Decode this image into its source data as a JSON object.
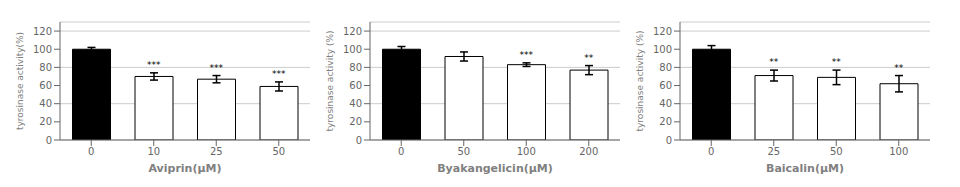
{
  "chart_data": [
    {
      "type": "bar",
      "xlabel": "Aviprin(μM)",
      "ylabel": "tyrosinase activity(%)",
      "categories": [
        "0",
        "10",
        "25",
        "50"
      ],
      "values": [
        100,
        70,
        67,
        59
      ],
      "errors": [
        2,
        4,
        4,
        5
      ],
      "colors": [
        "black",
        "white",
        "white",
        "white"
      ],
      "annotations": [
        null,
        "***",
        "***",
        "***"
      ],
      "ylim": [
        0,
        130
      ],
      "yticks": [
        0,
        20,
        40,
        60,
        80,
        100,
        120
      ],
      "grid": true
    },
    {
      "type": "bar",
      "xlabel": "Byakangelicin(μM)",
      "ylabel": "tyrosinase activity (%)",
      "categories": [
        "0",
        "50",
        "100",
        "200"
      ],
      "values": [
        100,
        92,
        83,
        77
      ],
      "errors": [
        3,
        5,
        2,
        5
      ],
      "colors": [
        "black",
        "white",
        "white",
        "white"
      ],
      "annotations": [
        null,
        null,
        "***",
        "**"
      ],
      "ylim": [
        0,
        130
      ],
      "yticks": [
        0,
        20,
        40,
        60,
        80,
        100,
        120
      ],
      "grid": true
    },
    {
      "type": "bar",
      "xlabel": "Baicalin(μM)",
      "ylabel": "tyrosinase activity (%)",
      "categories": [
        "0",
        "25",
        "50",
        "100"
      ],
      "values": [
        100,
        71,
        69,
        62
      ],
      "errors": [
        4,
        6,
        8,
        9
      ],
      "colors": [
        "black",
        "white",
        "white",
        "white"
      ],
      "annotations": [
        null,
        "**",
        "**",
        "**"
      ],
      "ylim": [
        0,
        130
      ],
      "yticks": [
        0,
        20,
        40,
        60,
        80,
        100,
        120
      ],
      "grid": true
    }
  ]
}
